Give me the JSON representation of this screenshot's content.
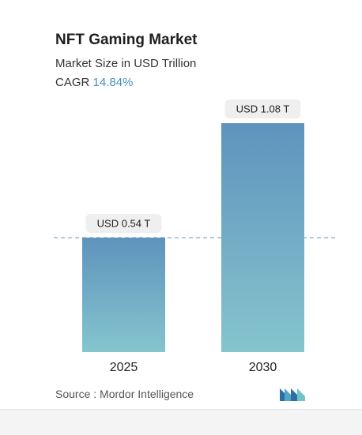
{
  "header": {
    "title": "NFT Gaming Market",
    "subtitle": "Market Size in USD Trillion",
    "cagr_label": "CAGR",
    "cagr_value": "14.84%"
  },
  "chart_data": {
    "type": "bar",
    "categories": [
      "2025",
      "2030"
    ],
    "values": [
      0.54,
      1.08
    ],
    "data_labels": [
      "USD 0.54 T",
      "USD 1.08 T"
    ],
    "title": "NFT Gaming Market",
    "subtitle": "Market Size in USD Trillion",
    "ylim": [
      0,
      1.08
    ],
    "grid": false,
    "reference_line_value": 0.54
  },
  "footer": {
    "source": "Source :  Mordor Intelligence"
  },
  "colors": {
    "bar_top": "#5f93bd",
    "bar_bottom": "#84c5cd",
    "cagr_value": "#4a8fc1",
    "label_bg": "#efefef",
    "reference_line": "#5f93bd"
  },
  "icons": {
    "logo": "mordor-intelligence-logo"
  }
}
